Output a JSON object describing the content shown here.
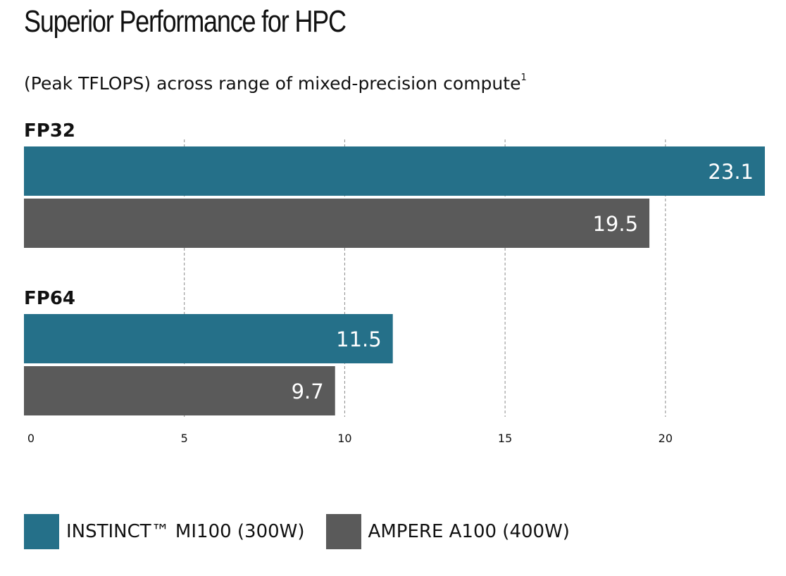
{
  "colors": {
    "series_0": "#257089",
    "series_1": "#5a5a5a"
  },
  "chart_data": {
    "type": "bar",
    "orientation": "horizontal",
    "title": "Superior Performance for HPC",
    "subtitle": "(Peak TFLOPS) across range of mixed-precision compute",
    "subtitle_footnote": "1",
    "categories": [
      "FP32",
      "FP64"
    ],
    "series": [
      {
        "name": "INSTINCT™ MI100 (300W)",
        "values": [
          23.1,
          11.5
        ]
      },
      {
        "name": "AMPERE A100 (400W)",
        "values": [
          19.5,
          9.7
        ]
      }
    ],
    "value_labels": [
      [
        "23.1",
        "11.5"
      ],
      [
        "19.5",
        "9.7"
      ]
    ],
    "xlim": [
      0,
      23.1
    ],
    "xticks": [
      "0",
      "5",
      "10",
      "15",
      "20"
    ],
    "grid": "vertical dashed",
    "legend": "bottom-left"
  }
}
